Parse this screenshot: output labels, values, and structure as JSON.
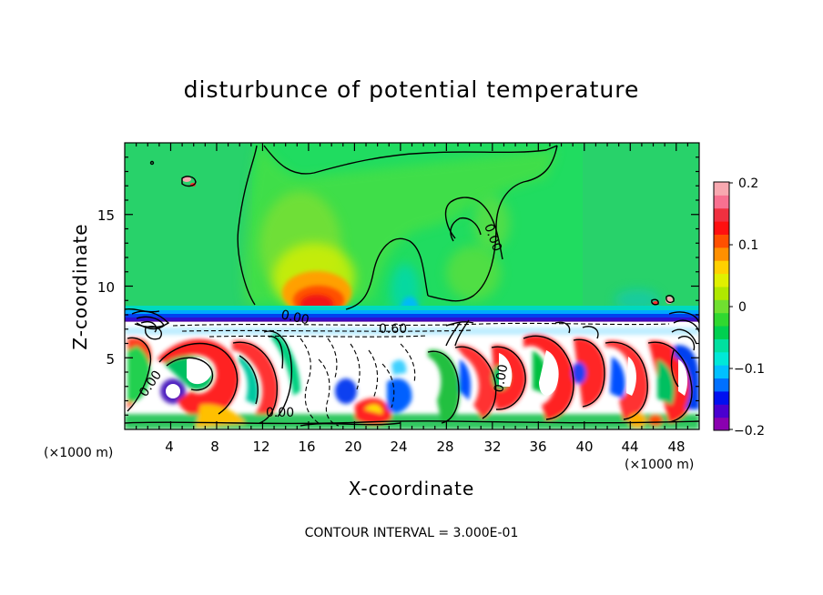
{
  "chart_data": {
    "type": "heatmap",
    "title": "disturbunce of potential temperature",
    "xlabel": "X-coordinate",
    "ylabel": "Z-coordinate",
    "x_unit_label": "(×1000 m)",
    "footer": "CONTOUR INTERVAL = 3.000E-01",
    "xlim": [
      0,
      50
    ],
    "ylim": [
      0,
      20
    ],
    "x_ticks": [
      "4",
      "8",
      "12",
      "16",
      "20",
      "24",
      "28",
      "32",
      "36",
      "40",
      "44",
      "48"
    ],
    "y_ticks": [
      "5",
      "10",
      "15"
    ],
    "colorbar": {
      "range": [
        -0.2,
        0.2
      ],
      "ticks": [
        "0.2",
        "0.1",
        "0",
        "−0.1",
        "−0.2"
      ],
      "colors": [
        "#8a00b0",
        "#4a00d0",
        "#0010f0",
        "#0070ff",
        "#00c0ff",
        "#00e8d8",
        "#00e0a0",
        "#00d050",
        "#30d830",
        "#70e030",
        "#b0e800",
        "#e0f000",
        "#ffd000",
        "#ff9000",
        "#ff5000",
        "#ff1010",
        "#f03040",
        "#f87090",
        "#f8a8b0"
      ]
    },
    "contour_labels": [
      "0.00",
      "0.00",
      "0.00",
      "0.00",
      "0.60",
      "0.00"
    ],
    "contour_interval": 0.3
  }
}
